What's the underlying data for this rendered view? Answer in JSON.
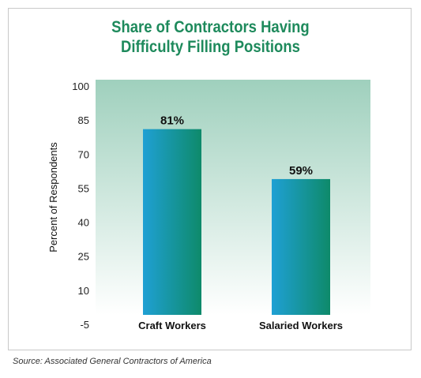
{
  "title_line1": "Share of Contractors Having",
  "title_line2": "Difficulty Filling Positions",
  "source": "Source: Associated General Contractors of America",
  "colors": {
    "title": "#1e8a5c",
    "bar_left": "#1fa0d4",
    "bar_right": "#0e8a6a",
    "plot_bg_top": "#9fd0bd",
    "plot_bg_bottom": "#ffffff"
  },
  "chart_data": {
    "type": "bar",
    "title": "Share of Contractors Having Difficulty Filling Positions",
    "xlabel": "",
    "ylabel": "Percent of Respondents",
    "ylim": [
      -5,
      100
    ],
    "yticks": [
      -5,
      10,
      25,
      40,
      55,
      70,
      85,
      100
    ],
    "ytick_labels": [
      "-5",
      "10",
      "25",
      "40",
      "55",
      "70",
      "85",
      "100"
    ],
    "categories": [
      "Craft Workers",
      "Salaried Workers"
    ],
    "values": [
      81,
      59
    ],
    "value_labels": [
      "81%",
      "59%"
    ],
    "grid": false,
    "legend": "none"
  }
}
